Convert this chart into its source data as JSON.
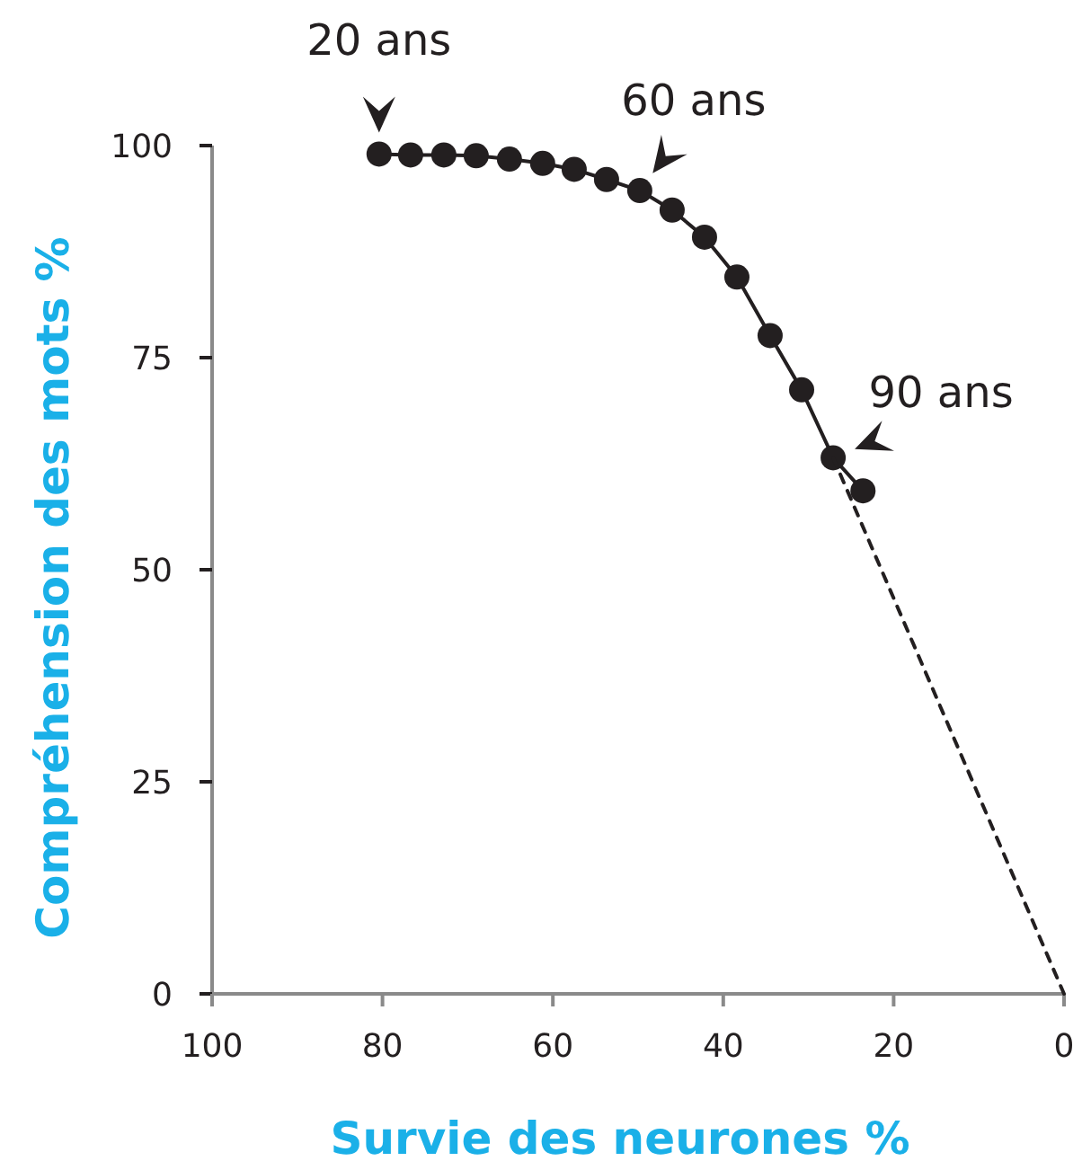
{
  "chart_data": {
    "type": "line",
    "xlabel": "Survie des neurones %",
    "ylabel": "Compréhension des mots %",
    "xlim": [
      100,
      0
    ],
    "xticks": [
      100,
      80,
      60,
      40,
      20,
      0
    ],
    "ylim": [
      0,
      100
    ],
    "yticks": [
      0,
      25,
      50,
      75,
      100
    ],
    "grid": false,
    "series": [
      {
        "color": "#231f20",
        "marker": "circle",
        "line_style": "solid",
        "x": [
          80.4,
          76.7,
          72.8,
          69.0,
          65.1,
          61.2,
          57.5,
          53.7,
          49.8,
          46.0,
          42.2,
          38.4,
          34.5,
          30.8,
          27.1,
          23.6
        ],
        "values": [
          99.0,
          98.9,
          98.9,
          98.8,
          98.4,
          97.9,
          97.2,
          96.0,
          94.7,
          92.4,
          89.2,
          84.5,
          77.6,
          71.2,
          63.2,
          59.3
        ]
      },
      {
        "color": "#231f20",
        "marker": "none",
        "line_style": "dashed",
        "x": [
          27.1,
          0
        ],
        "values": [
          63.2,
          0
        ]
      }
    ],
    "annotations": [
      {
        "text": "20 ans",
        "x": 80.4,
        "y": 99.0
      },
      {
        "text": "60 ans",
        "x": 49.8,
        "y": 94.7
      },
      {
        "text": "90 ans",
        "x": 27.1,
        "y": 63.2
      }
    ]
  }
}
